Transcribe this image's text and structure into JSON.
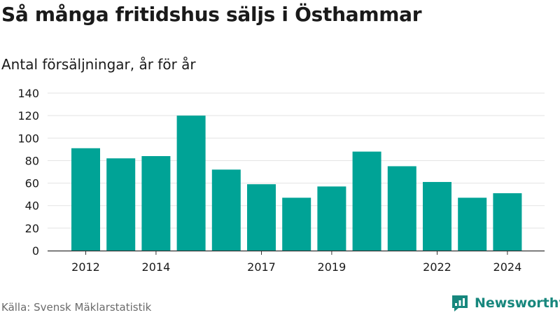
{
  "header": {
    "title": "Så många fritidshus säljs i Östhammar",
    "subtitle": "Antal försäljningar, år för år"
  },
  "footer": {
    "source": "Källa: Svensk Mäklarstatistik",
    "brand": "Newsworthy"
  },
  "colors": {
    "bar": "#00a396",
    "brand": "#17877d",
    "grid": "#e3e3e3",
    "axis": "#333333"
  },
  "chart_data": {
    "type": "bar",
    "title": "Så många fritidshus säljs i Östhammar",
    "subtitle": "Antal försäljningar, år för år",
    "xlabel": "",
    "ylabel": "",
    "categories": [
      "2012",
      "2013",
      "2014",
      "2015",
      "2016",
      "2017",
      "2018",
      "2019",
      "2020",
      "2021",
      "2022",
      "2023",
      "2024"
    ],
    "x_tick_labels": [
      "2012",
      "2014",
      "2017",
      "2019",
      "2022",
      "2024"
    ],
    "values": [
      91,
      82,
      84,
      120,
      72,
      59,
      47,
      57,
      88,
      75,
      61,
      47,
      51
    ],
    "ylim": [
      0,
      140
    ],
    "yticks": [
      0,
      20,
      40,
      60,
      80,
      100,
      120,
      140
    ],
    "grid": true,
    "legend": "none"
  }
}
